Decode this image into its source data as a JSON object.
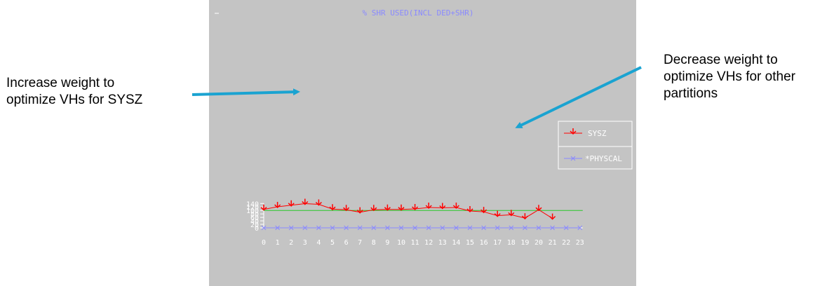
{
  "annotations": {
    "left": [
      "Increase weight to",
      "optimize VHs for SYSZ"
    ],
    "right": [
      "Decrease weight to",
      "optimize VHs for other",
      "partitions"
    ]
  },
  "colors": {
    "panel_bg": "#c4c4c4",
    "sysz": "#ff0000",
    "physcal": "#8a8aff",
    "threshold": "#28c828",
    "axis": "#ffffff",
    "arrow": "#1aa3d1"
  },
  "chart_data": {
    "type": "line",
    "title": "% SHR USED(INCL DED+SHR)",
    "xlabel": "",
    "ylabel": "",
    "x": [
      0,
      1,
      2,
      3,
      4,
      5,
      6,
      7,
      8,
      9,
      10,
      11,
      12,
      13,
      14,
      15,
      16,
      17,
      18,
      19,
      20,
      21,
      22,
      23
    ],
    "ylim": [
      0,
      140
    ],
    "yticks": [
      0,
      20,
      40,
      60,
      80,
      100,
      120,
      140
    ],
    "grid": false,
    "legend": "right",
    "reference_line": 100,
    "series": [
      {
        "name": "SYSZ",
        "x": [
          0,
          1,
          2,
          3,
          4,
          5,
          6,
          7,
          8,
          9,
          10,
          11,
          12,
          13,
          14,
          15,
          16,
          17,
          18,
          19,
          20,
          21
        ],
        "values": [
          106,
          121,
          130,
          139,
          135,
          108,
          104,
          90,
          104,
          106,
          106,
          109,
          117,
          115,
          117,
          97,
          92,
          70,
          75,
          56,
          104,
          54
        ]
      },
      {
        "name": "*PHYSCAL",
        "x": [
          0,
          1,
          2,
          3,
          4,
          5,
          6,
          7,
          8,
          9,
          10,
          11,
          12,
          13,
          14,
          15,
          16,
          17,
          18,
          19,
          20,
          21,
          22,
          23
        ],
        "values": [
          0,
          0,
          0,
          0,
          0,
          0,
          0,
          0,
          0,
          0,
          0,
          0,
          0,
          0,
          0,
          0,
          0,
          0,
          0,
          0,
          0,
          0,
          0,
          0
        ]
      }
    ]
  }
}
